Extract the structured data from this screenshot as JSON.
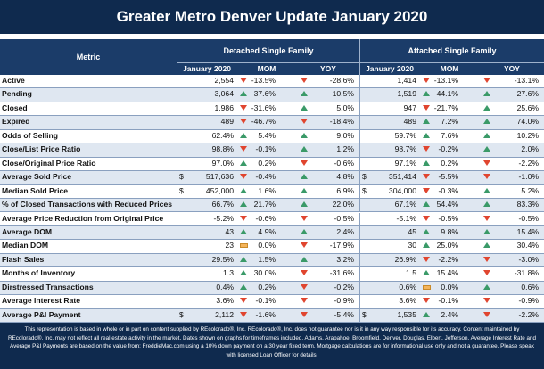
{
  "title": "Greater Metro Denver Update January 2020",
  "header": {
    "metric": "Metric",
    "group1": "Detached Single Family",
    "group2": "Attached Single Family",
    "sub": [
      "January 2020",
      "MOM",
      "YOY",
      "January 2020",
      "MOM",
      "YOY"
    ]
  },
  "rows": [
    {
      "label": "Active",
      "d": {
        "cur": "",
        "val": "2,554",
        "mom": "-13.5%",
        "momd": "down",
        "yoy": "-28.6%",
        "yoyd": "down"
      },
      "a": {
        "cur": "",
        "val": "1,414",
        "mom": "-13.1%",
        "momd": "down",
        "yoy": "-13.1%",
        "yoyd": "down"
      }
    },
    {
      "label": "Pending",
      "d": {
        "cur": "",
        "val": "3,064",
        "mom": "37.6%",
        "momd": "up",
        "yoy": "10.5%",
        "yoyd": "up"
      },
      "a": {
        "cur": "",
        "val": "1,519",
        "mom": "44.1%",
        "momd": "up",
        "yoy": "27.6%",
        "yoyd": "up"
      }
    },
    {
      "label": "Closed",
      "d": {
        "cur": "",
        "val": "1,986",
        "mom": "-31.6%",
        "momd": "down",
        "yoy": "5.0%",
        "yoyd": "up"
      },
      "a": {
        "cur": "",
        "val": "947",
        "mom": "-21.7%",
        "momd": "down",
        "yoy": "25.6%",
        "yoyd": "up"
      }
    },
    {
      "label": "Expired",
      "d": {
        "cur": "",
        "val": "489",
        "mom": "-46.7%",
        "momd": "down",
        "yoy": "-18.4%",
        "yoyd": "down"
      },
      "a": {
        "cur": "",
        "val": "489",
        "mom": "7.2%",
        "momd": "up",
        "yoy": "74.0%",
        "yoyd": "up"
      }
    },
    {
      "label": "Odds of Selling",
      "d": {
        "cur": "",
        "val": "62.4%",
        "mom": "5.4%",
        "momd": "up",
        "yoy": "9.0%",
        "yoyd": "up"
      },
      "a": {
        "cur": "",
        "val": "59.7%",
        "mom": "7.6%",
        "momd": "up",
        "yoy": "10.2%",
        "yoyd": "up"
      }
    },
    {
      "label": "Close/List Price Ratio",
      "d": {
        "cur": "",
        "val": "98.8%",
        "mom": "-0.1%",
        "momd": "down",
        "yoy": "1.2%",
        "yoyd": "up"
      },
      "a": {
        "cur": "",
        "val": "98.7%",
        "mom": "-0.2%",
        "momd": "down",
        "yoy": "2.0%",
        "yoyd": "up"
      }
    },
    {
      "label": "Close/Original Price Ratio",
      "d": {
        "cur": "",
        "val": "97.0%",
        "mom": "0.2%",
        "momd": "up",
        "yoy": "-0.6%",
        "yoyd": "down"
      },
      "a": {
        "cur": "",
        "val": "97.1%",
        "mom": "0.2%",
        "momd": "up",
        "yoy": "-2.2%",
        "yoyd": "down"
      }
    },
    {
      "label": "Average Sold Price",
      "d": {
        "cur": "$",
        "val": "517,636",
        "mom": "-0.4%",
        "momd": "down",
        "yoy": "4.8%",
        "yoyd": "up"
      },
      "a": {
        "cur": "$",
        "val": "351,414",
        "mom": "-5.5%",
        "momd": "down",
        "yoy": "-1.0%",
        "yoyd": "down"
      }
    },
    {
      "label": "Median Sold Price",
      "d": {
        "cur": "$",
        "val": "452,000",
        "mom": "1.6%",
        "momd": "up",
        "yoy": "6.9%",
        "yoyd": "up"
      },
      "a": {
        "cur": "$",
        "val": "304,000",
        "mom": "-0.3%",
        "momd": "down",
        "yoy": "5.2%",
        "yoyd": "up"
      }
    },
    {
      "label": "% of Closed Transactions with Reduced Prices",
      "d": {
        "cur": "",
        "val": "66.7%",
        "mom": "21.7%",
        "momd": "up",
        "yoy": "22.0%",
        "yoyd": "up"
      },
      "a": {
        "cur": "",
        "val": "67.1%",
        "mom": "54.4%",
        "momd": "up",
        "yoy": "83.3%",
        "yoyd": "up"
      }
    },
    {
      "label": "Average Price Reduction from Original Price",
      "d": {
        "cur": "",
        "val": "-5.2%",
        "mom": "-0.6%",
        "momd": "down",
        "yoy": "-0.5%",
        "yoyd": "down"
      },
      "a": {
        "cur": "",
        "val": "-5.1%",
        "mom": "-0.5%",
        "momd": "down",
        "yoy": "-0.5%",
        "yoyd": "down"
      }
    },
    {
      "label": "Average DOM",
      "d": {
        "cur": "",
        "val": "43",
        "mom": "4.9%",
        "momd": "up",
        "yoy": "2.4%",
        "yoyd": "up"
      },
      "a": {
        "cur": "",
        "val": "45",
        "mom": "9.8%",
        "momd": "up",
        "yoy": "15.4%",
        "yoyd": "up"
      }
    },
    {
      "label": "Median DOM",
      "d": {
        "cur": "",
        "val": "23",
        "mom": "0.0%",
        "momd": "flat",
        "yoy": "-17.9%",
        "yoyd": "down"
      },
      "a": {
        "cur": "",
        "val": "30",
        "mom": "25.0%",
        "momd": "up",
        "yoy": "30.4%",
        "yoyd": "up"
      }
    },
    {
      "label": "Flash Sales",
      "d": {
        "cur": "",
        "val": "29.5%",
        "mom": "1.5%",
        "momd": "up",
        "yoy": "3.2%",
        "yoyd": "up"
      },
      "a": {
        "cur": "",
        "val": "26.9%",
        "mom": "-2.2%",
        "momd": "down",
        "yoy": "-3.0%",
        "yoyd": "down"
      }
    },
    {
      "label": "Months of Inventory",
      "d": {
        "cur": "",
        "val": "1.3",
        "mom": "30.0%",
        "momd": "up",
        "yoy": "-31.6%",
        "yoyd": "down"
      },
      "a": {
        "cur": "",
        "val": "1.5",
        "mom": "15.4%",
        "momd": "up",
        "yoy": "-31.8%",
        "yoyd": "down"
      }
    },
    {
      "label": "Dirstressed Transactions",
      "d": {
        "cur": "",
        "val": "0.4%",
        "mom": "0.2%",
        "momd": "up",
        "yoy": "-0.2%",
        "yoyd": "down"
      },
      "a": {
        "cur": "",
        "val": "0.6%",
        "mom": "0.0%",
        "momd": "flat",
        "yoy": "0.6%",
        "yoyd": "up"
      }
    },
    {
      "label": "Average Interest Rate",
      "d": {
        "cur": "",
        "val": "3.6%",
        "mom": "-0.1%",
        "momd": "down",
        "yoy": "-0.9%",
        "yoyd": "down"
      },
      "a": {
        "cur": "",
        "val": "3.6%",
        "mom": "-0.1%",
        "momd": "down",
        "yoy": "-0.9%",
        "yoyd": "down"
      }
    },
    {
      "label": "Average P&I Payment",
      "d": {
        "cur": "$",
        "val": "2,112",
        "mom": "-1.6%",
        "momd": "down",
        "yoy": "-5.4%",
        "yoyd": "down"
      },
      "a": {
        "cur": "$",
        "val": "1,535",
        "mom": "2.4%",
        "momd": "up",
        "yoy": "-2.2%",
        "yoyd": "down"
      }
    }
  ],
  "footer": "This representation is based in whole or in part on content supplied by REcolorado®, Inc. REcolorado®, Inc. does not guarantee nor is it in any way responsible for its accuracy. Content maintained by REcolorado®, Inc. may not reflect all real estate activity in the market. Dates shown on graphs for timeframes included. Adams, Arapahoe, Broomfield, Denver, Douglas, Elbert, Jefferson. Average Interest Rate and Average P&I Payments are based on the value from: FreddieMac.com using a 10% down payment on a 30 year fixed term. Mortgage calculations are for informational use only and not a guarantee. Please speak with licensed Loan Officer for details.",
  "colors": {
    "title_bg": "#0f2a4e",
    "header_bg": "#1b3c69",
    "up": "#3a9a68",
    "down": "#e0452f",
    "flat": "#f4b45a"
  }
}
